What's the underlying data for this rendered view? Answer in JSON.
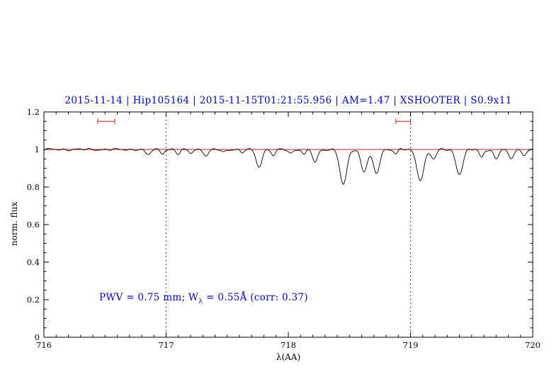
{
  "header": {
    "title": "2015-11-14 | Hip105164 | 2015-11-15T01:21:55.956 | AM=1.47 | XSHOOTER | S0.9x11"
  },
  "annotation": {
    "prefix": "PWV = 0.75 mm; W",
    "sub": "λ",
    "suffix": " = 0.55Å (corr: 0.37)"
  },
  "colors": {
    "accent_blue": "#0000cc",
    "line_red": "#cc2222",
    "spectrum_black": "#000000"
  },
  "chart_data": {
    "type": "line",
    "title": "2015-11-14 | Hip105164 | 2015-11-15T01:21:55.956 | AM=1.47 | XSHOOTER | S0.9x11",
    "xlabel": "λ(AA)",
    "ylabel": "norm. flux",
    "xlim": [
      716,
      720
    ],
    "ylim": [
      0,
      1.2
    ],
    "x_ticks": [
      716,
      717,
      718,
      719,
      720
    ],
    "x_tick_labels": [
      "716",
      "717",
      "718",
      "719",
      "720"
    ],
    "x_minor_step": 0.1,
    "y_ticks": [
      0,
      0.2,
      0.4,
      0.6,
      0.8,
      1,
      1.2
    ],
    "y_tick_labels": [
      "0",
      "0.2",
      "0.4",
      "0.6",
      "0.8",
      "1",
      "1.2"
    ],
    "y_minor_step": 0.05,
    "grid": false,
    "legend": "none",
    "dotted_vlines": [
      717,
      719
    ],
    "continuum_level": 1.0,
    "range_markers": [
      {
        "x_start": 716.44,
        "x_end": 716.58,
        "y": 1.15
      },
      {
        "x_start": 718.88,
        "x_end": 719.0,
        "y": 1.15
      }
    ],
    "absorption_lines": [
      [
        716.85,
        0.03,
        0.02
      ],
      [
        716.97,
        0.02,
        0.015
      ],
      [
        717.1,
        0.025,
        0.018
      ],
      [
        717.2,
        0.018,
        0.015
      ],
      [
        717.33,
        0.035,
        0.02
      ],
      [
        717.47,
        0.015,
        0.015
      ],
      [
        717.62,
        0.02,
        0.015
      ],
      [
        717.76,
        0.09,
        0.024
      ],
      [
        717.88,
        0.035,
        0.016
      ],
      [
        718.02,
        0.022,
        0.016
      ],
      [
        718.13,
        0.028,
        0.016
      ],
      [
        718.22,
        0.07,
        0.02
      ],
      [
        718.45,
        0.19,
        0.028
      ],
      [
        718.62,
        0.115,
        0.026
      ],
      [
        718.72,
        0.13,
        0.026
      ],
      [
        718.88,
        0.02,
        0.015
      ],
      [
        719.08,
        0.16,
        0.03
      ],
      [
        719.19,
        0.05,
        0.022
      ],
      [
        719.4,
        0.13,
        0.028
      ],
      [
        719.58,
        0.04,
        0.018
      ],
      [
        719.7,
        0.05,
        0.02
      ],
      [
        719.82,
        0.05,
        0.02
      ],
      [
        719.93,
        0.03,
        0.018
      ]
    ]
  }
}
